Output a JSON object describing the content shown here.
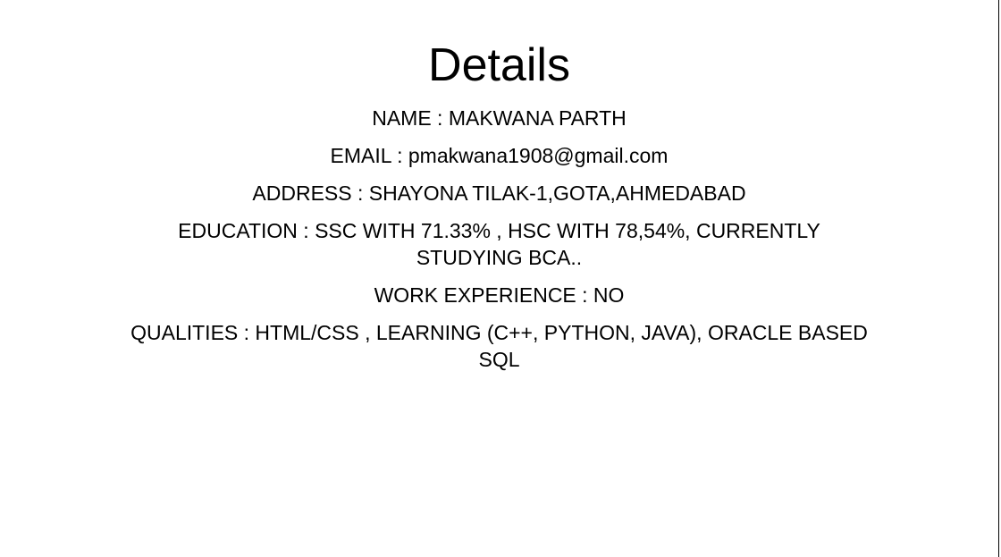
{
  "title": "Details",
  "lines": [
    "NAME : MAKWANA PARTH",
    "EMAIL : pmakwana1908@gmail.com",
    "ADDRESS : SHAYONA TILAK-1,GOTA,AHMEDABAD",
    "EDUCATION : SSC WITH 71.33% , HSC WITH 78,54%, CURRENTLY STUDYING BCA..",
    "WORK EXPERIENCE : NO",
    "QUALITIES : HTML/CSS , LEARNING (C++, PYTHON, JAVA), ORACLE BASED SQL"
  ]
}
